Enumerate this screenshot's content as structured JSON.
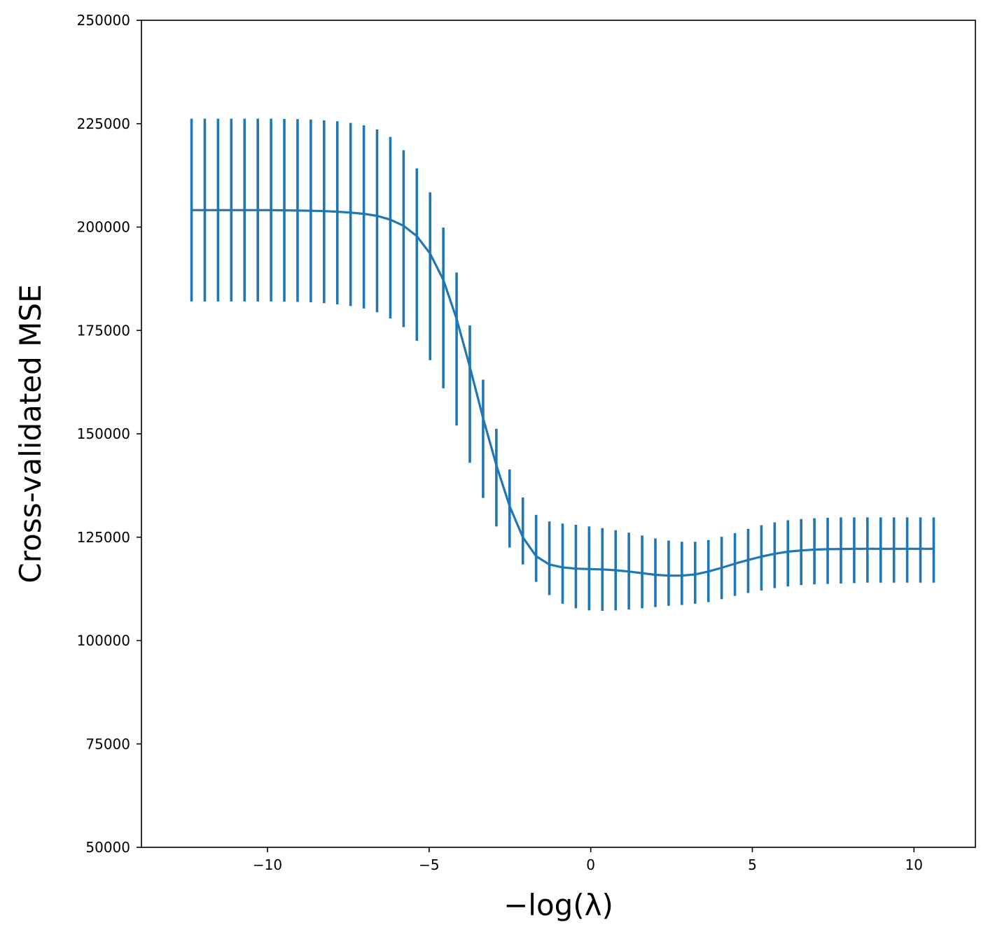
{
  "chart_data": {
    "type": "line",
    "title": "",
    "xlabel": "−log(λ)",
    "ylabel": "Cross-validated MSE",
    "xlim": [
      -13.9,
      11.9
    ],
    "ylim": [
      50000,
      250000
    ],
    "xticks": [
      -10,
      -5,
      0,
      5,
      10
    ],
    "xtick_labels": [
      "−10",
      "−5",
      "0",
      "5",
      "10"
    ],
    "yticks": [
      50000,
      75000,
      100000,
      125000,
      150000,
      175000,
      200000,
      225000,
      250000
    ],
    "ytick_labels": [
      "50000",
      "75000",
      "100000",
      "125000",
      "150000",
      "175000",
      "200000",
      "225000",
      "250000"
    ],
    "grid": false,
    "color": "#1f77b4",
    "series": [
      {
        "x": [
          -12.35,
          -11.94,
          -11.53,
          -11.12,
          -10.71,
          -10.3,
          -9.89,
          -9.48,
          -9.07,
          -8.66,
          -8.25,
          -7.84,
          -7.43,
          -7.02,
          -6.61,
          -6.2,
          -5.79,
          -5.38,
          -4.97,
          -4.56,
          -4.15,
          -3.74,
          -3.33,
          -2.92,
          -2.51,
          -2.1,
          -1.69,
          -1.28,
          -0.87,
          -0.46,
          -0.05,
          0.36,
          0.77,
          1.18,
          1.59,
          2.0,
          2.41,
          2.82,
          3.23,
          3.64,
          4.05,
          4.46,
          4.87,
          5.28,
          5.69,
          6.1,
          6.51,
          6.92,
          7.33,
          7.74,
          8.15,
          8.56,
          8.97,
          9.38,
          9.79,
          10.2,
          10.61
        ],
        "y": [
          204100,
          204100,
          204100,
          204100,
          204100,
          204100,
          204100,
          204050,
          204000,
          203950,
          203850,
          203700,
          203500,
          203200,
          202700,
          201800,
          200300,
          197800,
          193600,
          187200,
          177800,
          166200,
          153800,
          142400,
          132500,
          125000,
          120400,
          118400,
          117700,
          117400,
          117300,
          117200,
          117000,
          116700,
          116300,
          115900,
          115700,
          115700,
          116000,
          116700,
          117600,
          118600,
          119500,
          120300,
          121000,
          121500,
          121800,
          122000,
          122100,
          122150,
          122200,
          122200,
          122200,
          122200,
          122200,
          122200,
          122200
        ],
        "err_low": [
          182000,
          182000,
          182000,
          182000,
          182000,
          182000,
          182000,
          181950,
          181900,
          181800,
          181600,
          181300,
          180900,
          180300,
          179400,
          177900,
          175800,
          172500,
          167800,
          161000,
          152000,
          143000,
          134500,
          127600,
          122500,
          118400,
          114200,
          111000,
          108900,
          107800,
          107300,
          107200,
          107300,
          107500,
          107800,
          108100,
          108400,
          108600,
          108900,
          109300,
          110000,
          110800,
          111500,
          112100,
          112700,
          113100,
          113400,
          113600,
          113700,
          113800,
          113900,
          114000,
          114000,
          114000,
          114000,
          114000,
          114000
        ],
        "err_high": [
          226200,
          226200,
          226200,
          226200,
          226200,
          226200,
          226200,
          226150,
          226100,
          226000,
          225800,
          225600,
          225200,
          224600,
          223600,
          221800,
          218600,
          214200,
          208400,
          199900,
          189000,
          176200,
          163100,
          151200,
          141400,
          134600,
          130400,
          128800,
          128300,
          128000,
          127600,
          127200,
          126700,
          126100,
          125400,
          124700,
          124200,
          123900,
          123900,
          124300,
          125100,
          126000,
          127000,
          127900,
          128600,
          129100,
          129400,
          129600,
          129700,
          129800,
          129800,
          129800,
          129800,
          129800,
          129800,
          129800,
          129800
        ]
      }
    ]
  }
}
